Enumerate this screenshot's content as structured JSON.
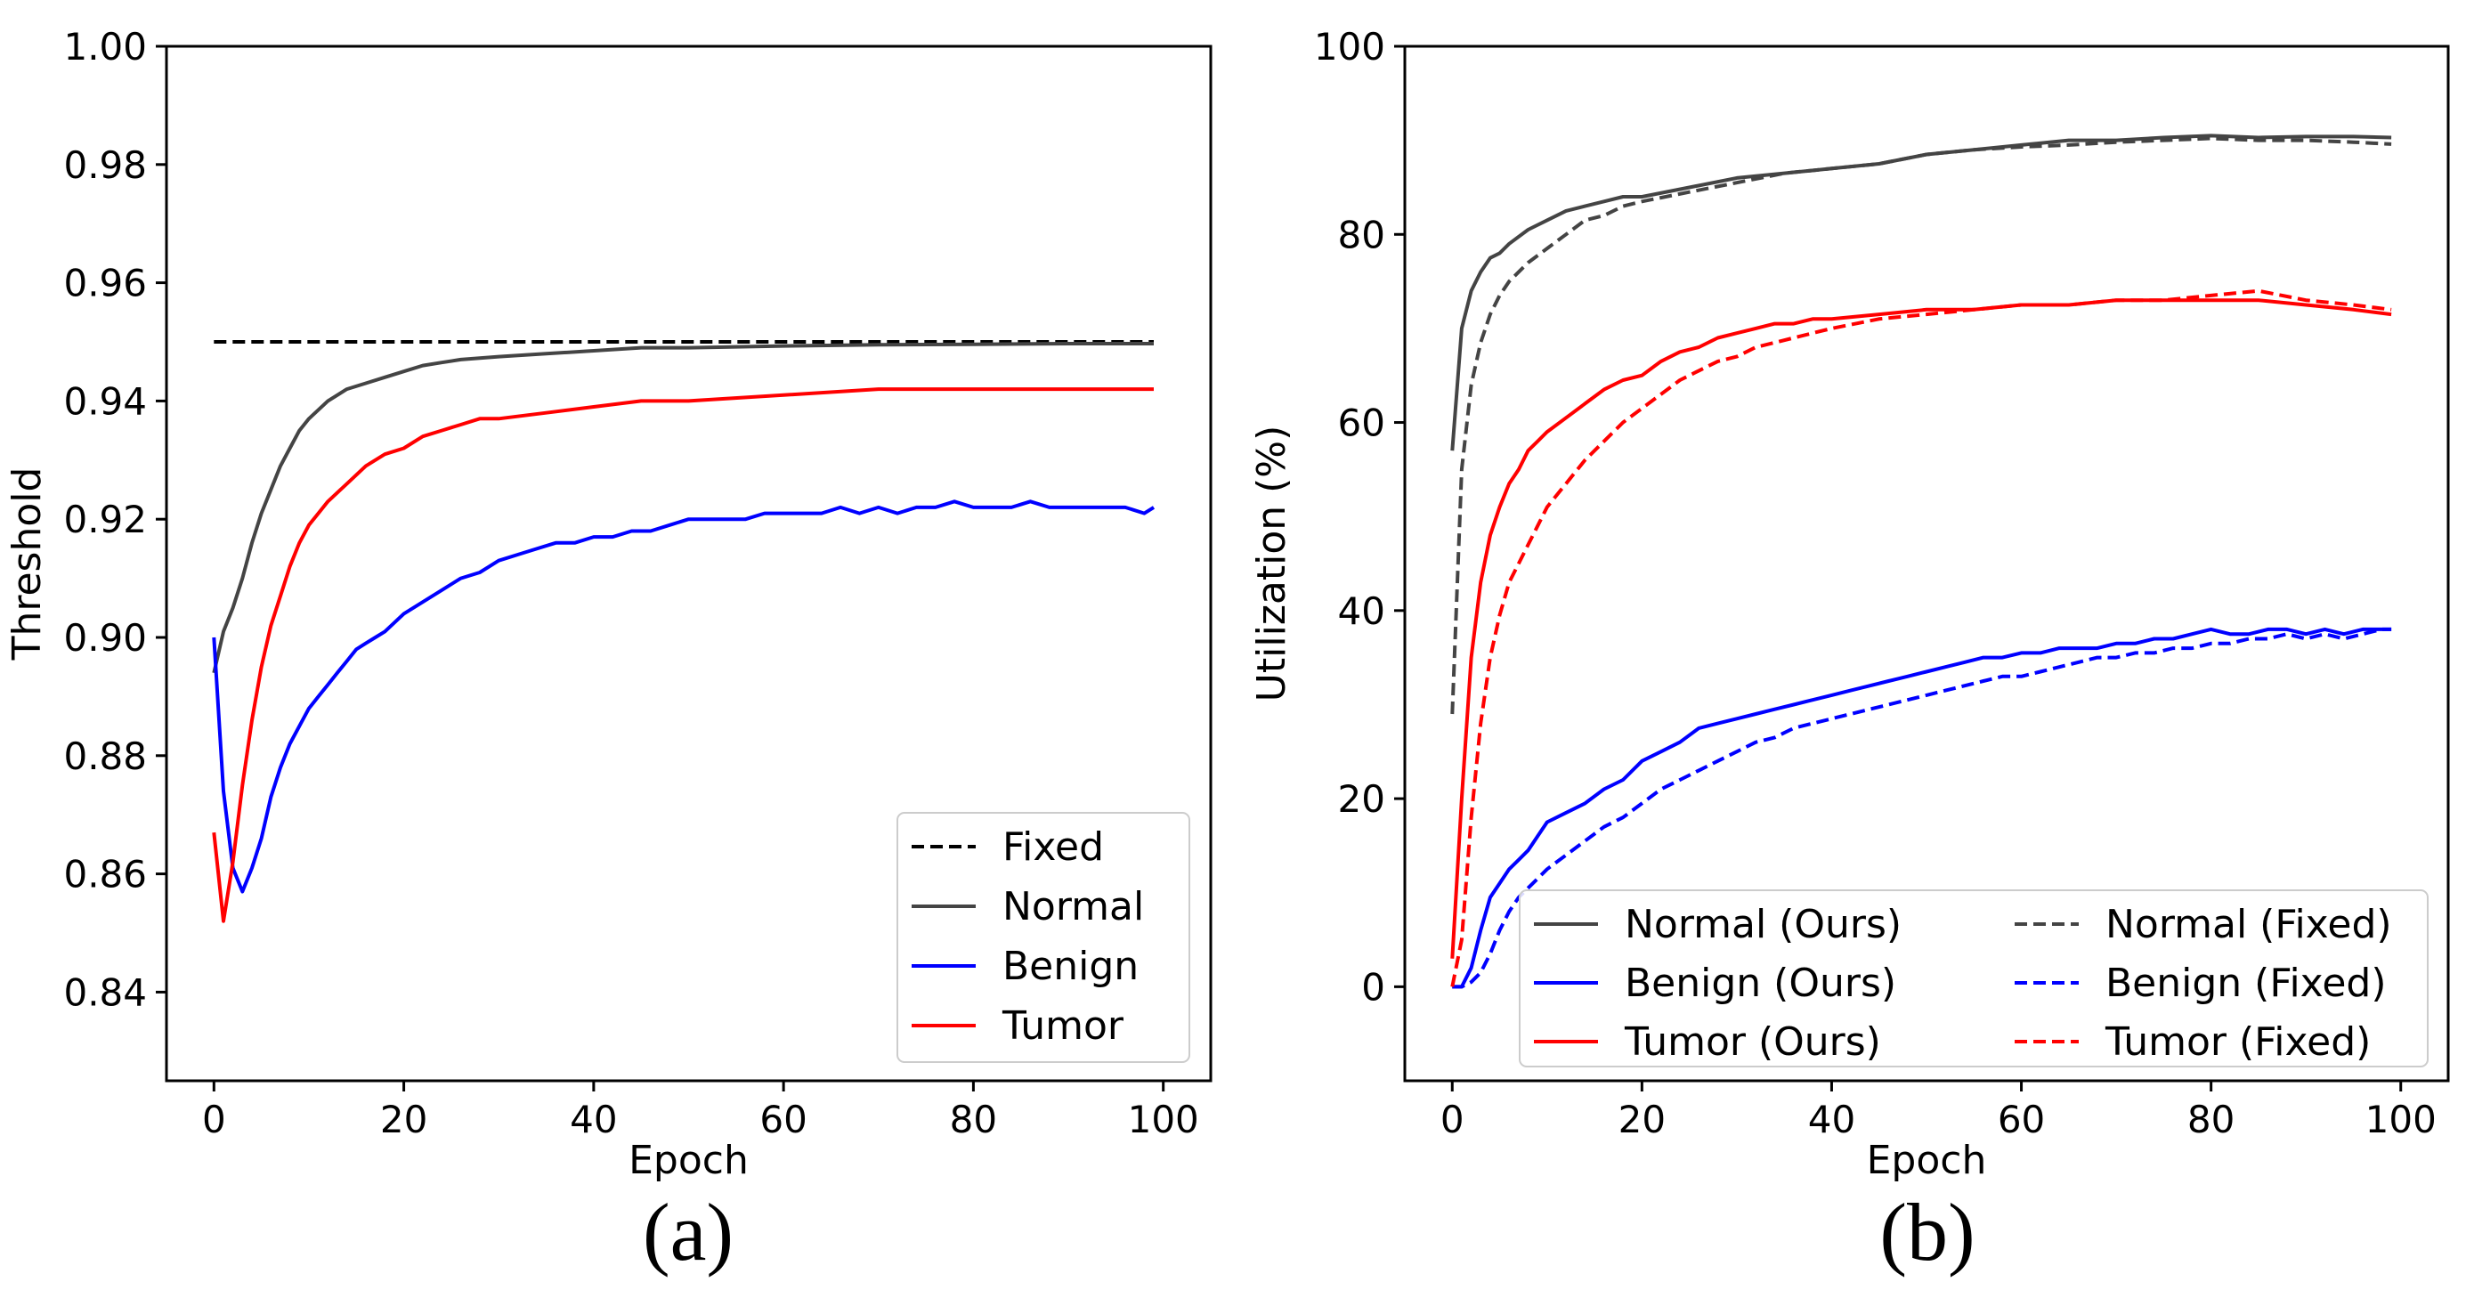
{
  "chart_data": [
    {
      "type": "line",
      "caption": "(a)",
      "xlabel": "Epoch",
      "ylabel": "Threshold",
      "xlim": [
        -5,
        105
      ],
      "ylim": [
        0.825,
        1.0
      ],
      "xticks": [
        0,
        20,
        40,
        60,
        80,
        100
      ],
      "yticks": [
        0.84,
        0.86,
        0.88,
        0.9,
        0.92,
        0.94,
        0.96,
        0.98,
        1.0
      ],
      "ytick_labels": [
        "0.84",
        "0.86",
        "0.88",
        "0.90",
        "0.92",
        "0.94",
        "0.96",
        "0.98",
        "1.00"
      ],
      "legend_position": "lower-right",
      "legend_columns": 1,
      "series": [
        {
          "name": "Fixed",
          "color": "#000000",
          "style": "dashed",
          "x": [
            0,
            99
          ],
          "y": [
            0.95,
            0.95
          ]
        },
        {
          "name": "Normal",
          "color": "#444444",
          "style": "solid",
          "x": [
            0,
            1,
            2,
            3,
            4,
            5,
            6,
            7,
            8,
            9,
            10,
            12,
            14,
            16,
            18,
            20,
            22,
            24,
            26,
            30,
            35,
            40,
            45,
            50,
            60,
            70,
            80,
            90,
            99
          ],
          "y": [
            0.894,
            0.901,
            0.905,
            0.91,
            0.916,
            0.921,
            0.925,
            0.929,
            0.932,
            0.935,
            0.937,
            0.94,
            0.942,
            0.943,
            0.944,
            0.945,
            0.946,
            0.9465,
            0.947,
            0.9475,
            0.948,
            0.9485,
            0.949,
            0.949,
            0.9493,
            0.9495,
            0.9496,
            0.9497,
            0.9497
          ]
        },
        {
          "name": "Benign",
          "color": "#0000ff",
          "style": "solid",
          "x": [
            0,
            1,
            2,
            3,
            4,
            5,
            6,
            7,
            8,
            9,
            10,
            11,
            12,
            13,
            14,
            15,
            16,
            17,
            18,
            20,
            22,
            24,
            26,
            28,
            30,
            32,
            34,
            36,
            38,
            40,
            42,
            44,
            46,
            48,
            50,
            52,
            54,
            56,
            58,
            60,
            62,
            64,
            66,
            68,
            70,
            72,
            74,
            76,
            78,
            80,
            82,
            84,
            86,
            88,
            90,
            92,
            94,
            96,
            98,
            99
          ],
          "y": [
            0.9,
            0.874,
            0.861,
            0.857,
            0.861,
            0.866,
            0.873,
            0.878,
            0.882,
            0.885,
            0.888,
            0.89,
            0.892,
            0.894,
            0.896,
            0.898,
            0.899,
            0.9,
            0.901,
            0.904,
            0.906,
            0.908,
            0.91,
            0.911,
            0.913,
            0.914,
            0.915,
            0.916,
            0.916,
            0.917,
            0.917,
            0.918,
            0.918,
            0.919,
            0.92,
            0.92,
            0.92,
            0.92,
            0.921,
            0.921,
            0.921,
            0.921,
            0.922,
            0.921,
            0.922,
            0.921,
            0.922,
            0.922,
            0.923,
            0.922,
            0.922,
            0.922,
            0.923,
            0.922,
            0.922,
            0.922,
            0.922,
            0.922,
            0.921,
            0.922
          ]
        },
        {
          "name": "Tumor",
          "color": "#ff0000",
          "style": "solid",
          "x": [
            0,
            1,
            2,
            3,
            4,
            5,
            6,
            7,
            8,
            9,
            10,
            11,
            12,
            14,
            16,
            18,
            20,
            22,
            24,
            26,
            28,
            30,
            35,
            40,
            45,
            50,
            60,
            70,
            80,
            90,
            99
          ],
          "y": [
            0.867,
            0.852,
            0.862,
            0.875,
            0.886,
            0.895,
            0.902,
            0.907,
            0.912,
            0.916,
            0.919,
            0.921,
            0.923,
            0.926,
            0.929,
            0.931,
            0.932,
            0.934,
            0.935,
            0.936,
            0.937,
            0.937,
            0.938,
            0.939,
            0.94,
            0.94,
            0.941,
            0.942,
            0.942,
            0.942,
            0.942
          ]
        }
      ]
    },
    {
      "type": "line",
      "caption": "(b)",
      "xlabel": "Epoch",
      "ylabel": "Utilization (%)",
      "xlim": [
        -5,
        105
      ],
      "ylim": [
        -10,
        100
      ],
      "xticks": [
        0,
        20,
        40,
        60,
        80,
        100
      ],
      "yticks": [
        0,
        20,
        40,
        60,
        80,
        100
      ],
      "ytick_labels": [
        "0",
        "20",
        "40",
        "60",
        "80",
        "100"
      ],
      "legend_position": "lower-center",
      "legend_columns": 2,
      "series": [
        {
          "name": "Normal (Ours)",
          "color": "#444444",
          "style": "solid",
          "x": [
            0,
            1,
            2,
            3,
            4,
            5,
            6,
            8,
            10,
            12,
            14,
            16,
            18,
            20,
            25,
            30,
            35,
            40,
            45,
            50,
            55,
            60,
            65,
            70,
            75,
            80,
            85,
            90,
            95,
            99
          ],
          "y": [
            57,
            70,
            74,
            76,
            77.5,
            78,
            79,
            80.5,
            81.5,
            82.5,
            83,
            83.5,
            84,
            84,
            85,
            86,
            86.5,
            87,
            87.5,
            88.5,
            89,
            89.5,
            90,
            90,
            90.3,
            90.5,
            90.3,
            90.4,
            90.4,
            90.3
          ]
        },
        {
          "name": "Benign (Ours)",
          "color": "#0000ff",
          "style": "solid",
          "x": [
            0,
            1,
            2,
            3,
            4,
            5,
            6,
            7,
            8,
            9,
            10,
            12,
            14,
            16,
            18,
            20,
            22,
            24,
            26,
            28,
            30,
            32,
            34,
            36,
            38,
            40,
            42,
            44,
            46,
            48,
            50,
            52,
            54,
            56,
            58,
            60,
            62,
            64,
            66,
            68,
            70,
            72,
            74,
            76,
            78,
            80,
            82,
            84,
            86,
            88,
            90,
            92,
            94,
            96,
            98,
            99
          ],
          "y": [
            0,
            0,
            2,
            6,
            9.5,
            11,
            12.5,
            13.5,
            14.5,
            16,
            17.5,
            18.5,
            19.5,
            21,
            22,
            24,
            25,
            26,
            27.5,
            28,
            28.5,
            29,
            29.5,
            30,
            30.5,
            31,
            31.5,
            32,
            32.5,
            33,
            33.5,
            34,
            34.5,
            35,
            35,
            35.5,
            35.5,
            36,
            36,
            36,
            36.5,
            36.5,
            37,
            37,
            37.5,
            38,
            37.5,
            37.5,
            38,
            38,
            37.5,
            38,
            37.5,
            38,
            38,
            38
          ]
        },
        {
          "name": "Tumor (Ours)",
          "color": "#ff0000",
          "style": "solid",
          "x": [
            0,
            1,
            2,
            3,
            4,
            5,
            6,
            7,
            8,
            9,
            10,
            12,
            14,
            16,
            18,
            20,
            22,
            24,
            26,
            28,
            30,
            32,
            34,
            36,
            38,
            40,
            45,
            50,
            55,
            60,
            65,
            70,
            75,
            80,
            85,
            90,
            95,
            99
          ],
          "y": [
            3,
            20,
            35,
            43,
            48,
            51,
            53.5,
            55,
            57,
            58,
            59,
            60.5,
            62,
            63.5,
            64.5,
            65,
            66.5,
            67.5,
            68,
            69,
            69.5,
            70,
            70.5,
            70.5,
            71,
            71,
            71.5,
            72,
            72,
            72.5,
            72.5,
            73,
            73,
            73,
            73,
            72.5,
            72,
            71.5
          ]
        },
        {
          "name": "Normal (Fixed)",
          "color": "#444444",
          "style": "dashed",
          "x": [
            0,
            1,
            2,
            3,
            4,
            5,
            6,
            8,
            10,
            12,
            14,
            16,
            18,
            20,
            25,
            30,
            35,
            40,
            45,
            50,
            55,
            60,
            65,
            70,
            75,
            80,
            85,
            90,
            95,
            99
          ],
          "y": [
            29,
            55,
            64,
            68.5,
            71.5,
            73.5,
            75,
            77,
            78.5,
            80,
            81.5,
            82,
            83,
            83.5,
            84.5,
            85.5,
            86.5,
            87,
            87.5,
            88.5,
            89,
            89.3,
            89.5,
            89.8,
            90,
            90.2,
            90,
            90,
            89.8,
            89.6
          ]
        },
        {
          "name": "Benign (Fixed)",
          "color": "#0000ff",
          "style": "dashed",
          "x": [
            0,
            1,
            2,
            3,
            4,
            5,
            6,
            7,
            8,
            9,
            10,
            12,
            14,
            16,
            18,
            20,
            22,
            24,
            26,
            28,
            30,
            32,
            34,
            36,
            38,
            40,
            42,
            44,
            46,
            48,
            50,
            52,
            54,
            56,
            58,
            60,
            62,
            64,
            66,
            68,
            70,
            72,
            74,
            76,
            78,
            80,
            82,
            84,
            86,
            88,
            90,
            92,
            94,
            96,
            98,
            99
          ],
          "y": [
            0,
            0,
            0.5,
            1.5,
            3.5,
            6,
            8,
            9.5,
            10.5,
            11.5,
            12.5,
            14,
            15.5,
            17,
            18,
            19.5,
            21,
            22,
            23,
            24,
            25,
            26,
            26.5,
            27.5,
            28,
            28.5,
            29,
            29.5,
            30,
            30.5,
            31,
            31.5,
            32,
            32.5,
            33,
            33,
            33.5,
            34,
            34.5,
            35,
            35,
            35.5,
            35.5,
            36,
            36,
            36.5,
            36.5,
            37,
            37,
            37.5,
            37,
            37.5,
            37,
            37.5,
            38,
            38
          ]
        },
        {
          "name": "Tumor (Fixed)",
          "color": "#ff0000",
          "style": "dashed",
          "x": [
            0,
            1,
            2,
            3,
            4,
            5,
            6,
            7,
            8,
            9,
            10,
            12,
            14,
            16,
            18,
            20,
            22,
            24,
            26,
            28,
            30,
            32,
            34,
            36,
            38,
            40,
            45,
            50,
            55,
            60,
            65,
            70,
            75,
            80,
            85,
            90,
            95,
            99
          ],
          "y": [
            0,
            5,
            18,
            28,
            35,
            39.5,
            43,
            45,
            47,
            49,
            51,
            53.5,
            56,
            58,
            60,
            61.5,
            63,
            64.5,
            65.5,
            66.5,
            67,
            68,
            68.5,
            69,
            69.5,
            70,
            71,
            71.5,
            72,
            72.5,
            72.5,
            73,
            73,
            73.5,
            74,
            73,
            72.5,
            72
          ]
        }
      ]
    }
  ]
}
